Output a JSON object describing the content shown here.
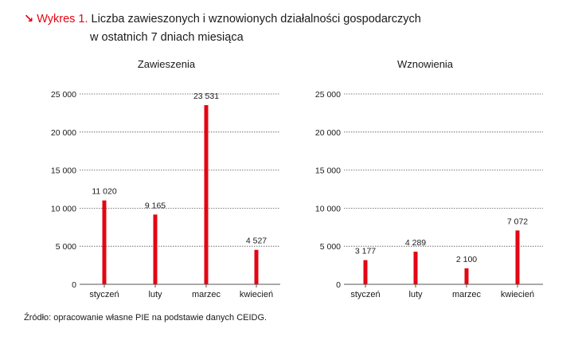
{
  "header": {
    "arrow": "↘",
    "prefix": "Wykres 1.",
    "title_line1": "Liczba zawieszonych i wznowionych działalności gospodarczych",
    "title_line2": "w ostatnich 7 dniach miesiąca"
  },
  "source": "Źródło: opracowanie własne PIE na podstawie danych CEIDG.",
  "colors": {
    "bar": "#e30613",
    "accent": "#e30613",
    "grid": "#555555",
    "text": "#1a1a1a"
  },
  "chart_data": [
    {
      "type": "bar",
      "title": "Zawieszenia",
      "categories": [
        "styczeń",
        "luty",
        "marzec",
        "kwiecień"
      ],
      "values": [
        11020,
        9165,
        23531,
        4527
      ],
      "value_labels": [
        "11 020",
        "9 165",
        "23 531",
        "4 527"
      ],
      "ylim": [
        0,
        25000
      ],
      "yticks": [
        0,
        5000,
        10000,
        15000,
        20000,
        25000
      ],
      "ytick_labels": [
        "0",
        "5 000",
        "10 000",
        "15 000",
        "20 000",
        "25 000"
      ],
      "grid": true
    },
    {
      "type": "bar",
      "title": "Wznowienia",
      "categories": [
        "styczeń",
        "luty",
        "marzec",
        "kwiecień"
      ],
      "values": [
        3177,
        4289,
        2100,
        7072
      ],
      "value_labels": [
        "3 177",
        "4 289",
        "2 100",
        "7 072"
      ],
      "ylim": [
        0,
        25000
      ],
      "yticks": [
        0,
        5000,
        10000,
        15000,
        20000,
        25000
      ],
      "ytick_labels": [
        "0",
        "5 000",
        "10 000",
        "15 000",
        "20 000",
        "25 000"
      ],
      "grid": true
    }
  ]
}
